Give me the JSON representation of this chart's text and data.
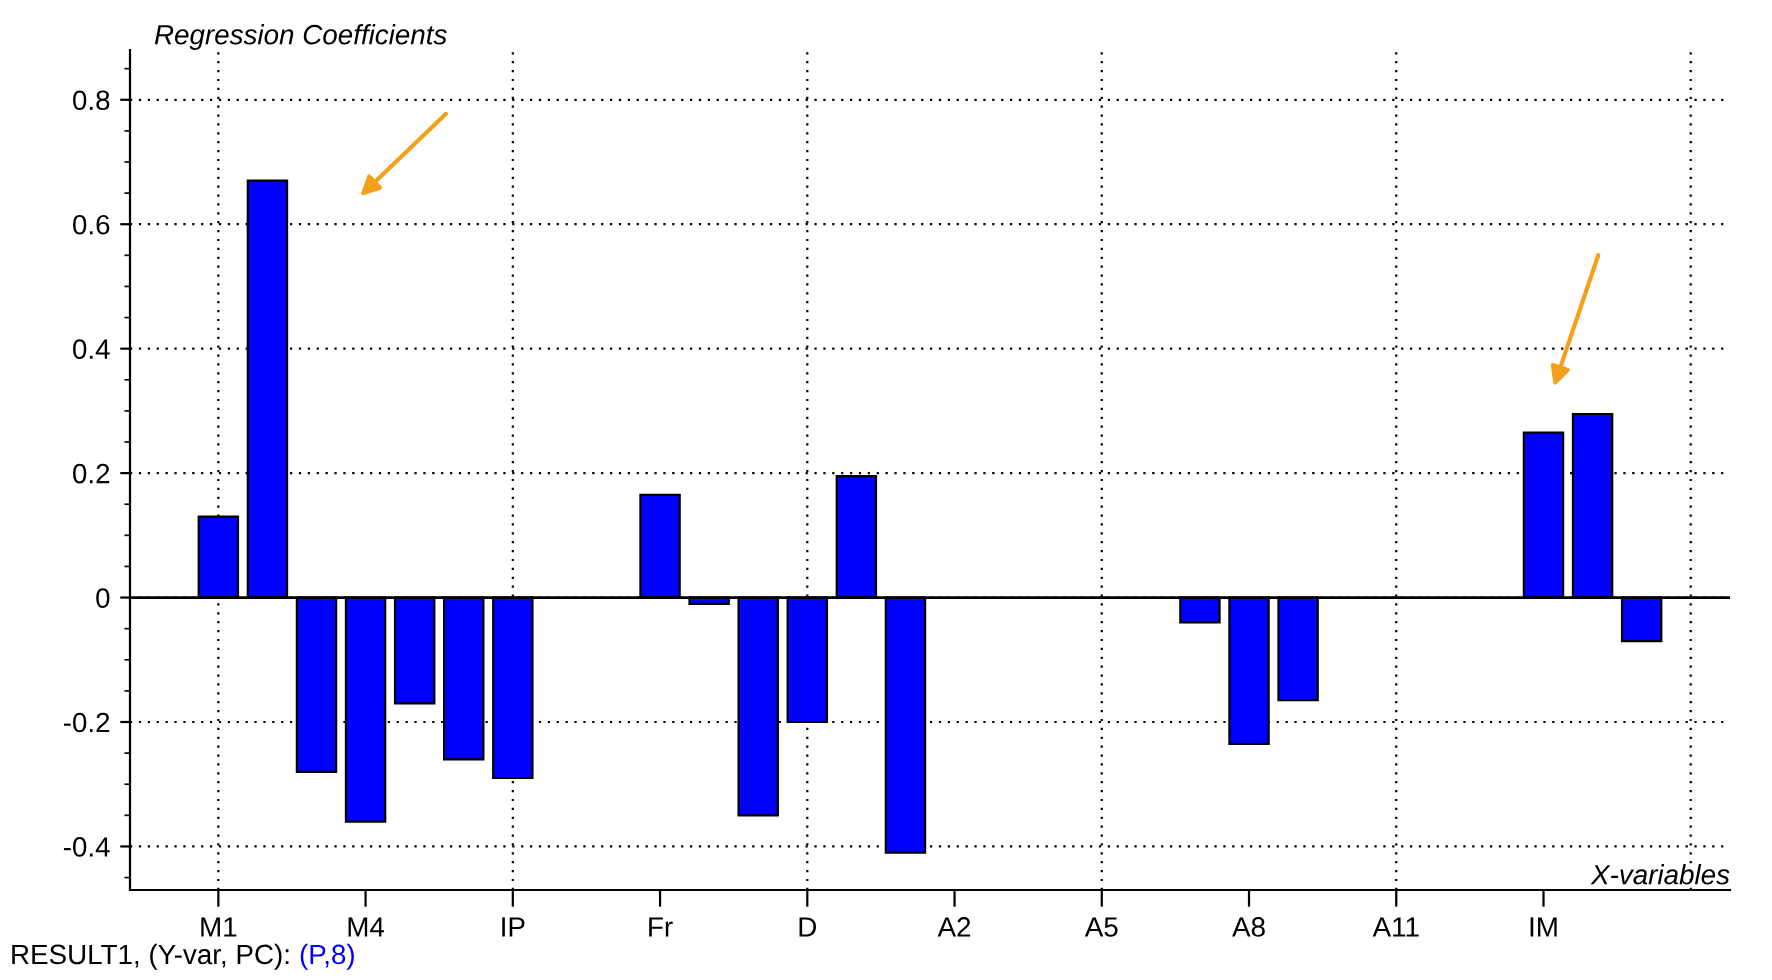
{
  "chart_data": {
    "type": "bar",
    "ylabel": "Regression Coefficients",
    "xlabel": "X-variables",
    "categories": [
      "M1",
      null,
      null,
      "M4",
      null,
      null,
      "IP",
      null,
      null,
      "Fr",
      null,
      null,
      "D",
      null,
      null,
      "A2",
      null,
      null,
      "A5",
      null,
      null,
      "A8",
      null,
      null,
      "A11",
      null,
      null,
      "IM",
      null,
      null
    ],
    "series": [
      {
        "color": "#0000ff",
        "values": [
          0.13,
          0.67,
          -0.28,
          -0.36,
          -0.17,
          -0.26,
          -0.29,
          null,
          null,
          0.165,
          -0.01,
          -0.35,
          -0.2,
          0.195,
          -0.41,
          null,
          null,
          null,
          null,
          null,
          -0.04,
          -0.235,
          -0.165,
          null,
          null,
          null,
          null,
          0.265,
          0.295,
          -0.07
        ]
      }
    ],
    "ylim": [
      -0.47,
      0.88
    ],
    "yticks": [
      -0.4,
      -0.2,
      0,
      0.2,
      0.4,
      0.6,
      0.8
    ],
    "ref_lines": [
      {
        "axis": "y",
        "value": 0,
        "color": "#000000"
      }
    ],
    "grid": true,
    "annotations": [
      "RESULT1, (Y-var, PC):",
      "(P,8)"
    ]
  }
}
